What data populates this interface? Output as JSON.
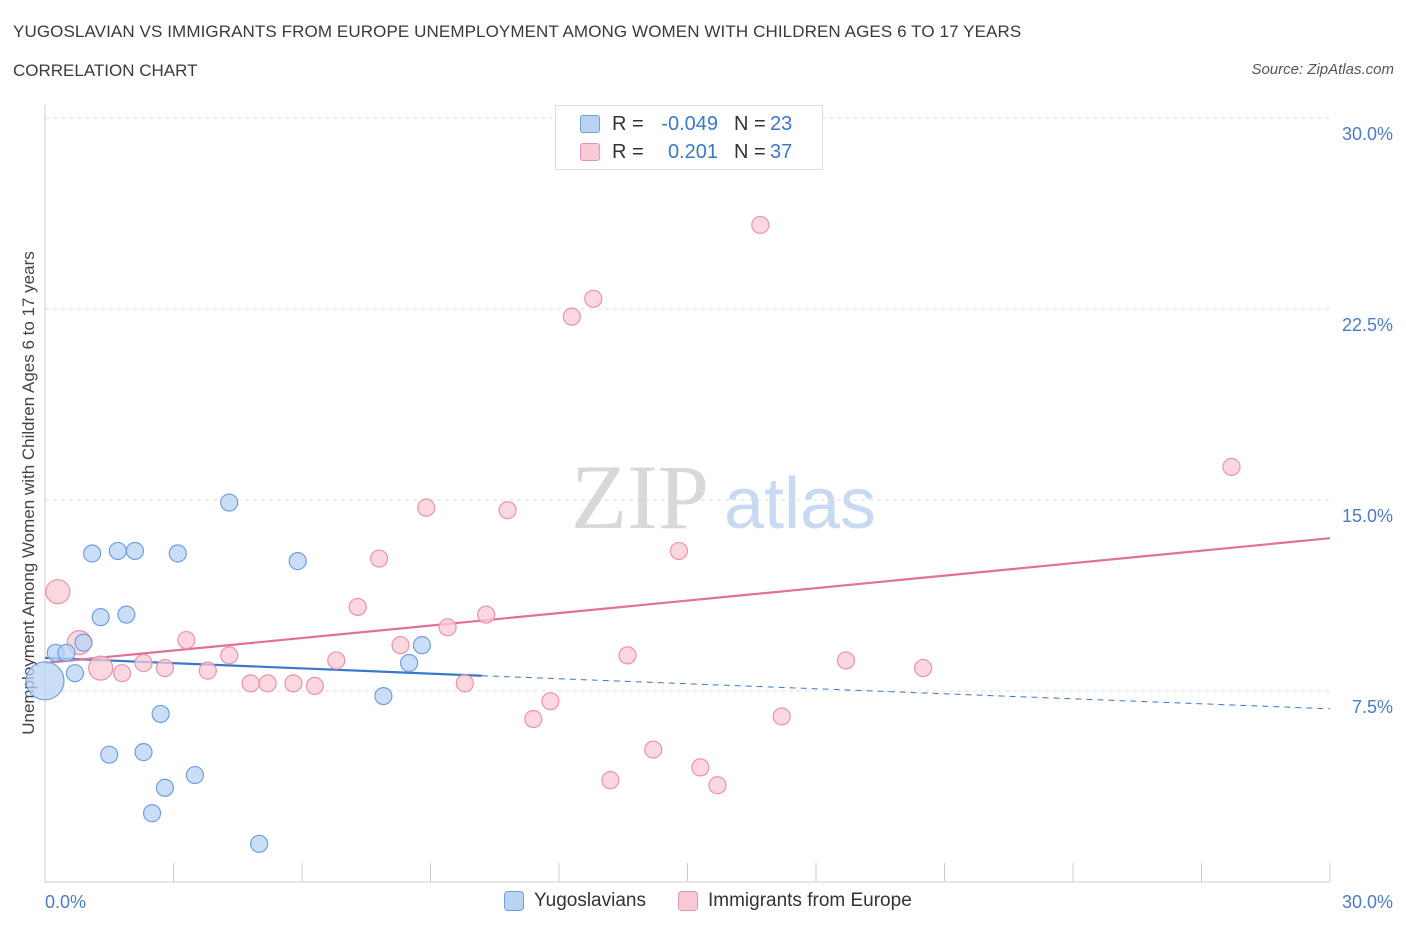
{
  "header": {
    "title": "YUGOSLAVIAN VS IMMIGRANTS FROM EUROPE UNEMPLOYMENT AMONG WOMEN WITH CHILDREN AGES 6 TO 17 YEARS",
    "subtitle": "CORRELATION CHART",
    "source": "Source: ZipAtlas.com"
  },
  "watermark": {
    "zip": "ZIP",
    "atlas": "atlas"
  },
  "legend": {
    "rows": [
      {
        "r_label": "R =",
        "r_value": "-0.049",
        "n_label": "N =",
        "n_value": "23"
      },
      {
        "r_label": "R =",
        "r_value": "0.201",
        "n_label": "N =",
        "n_value": "37"
      }
    ]
  },
  "colors": {
    "blue_fill": "#b9d3f5",
    "blue_stroke": "#6f9fe0",
    "blue_line": "#3a78cc",
    "pink_fill": "#f9c9d6",
    "pink_stroke": "#ea93ad",
    "pink_line": "#e2709a",
    "grid": "#dddddd",
    "tick": "#4a7cc8"
  },
  "chart_data": {
    "type": "scatter",
    "title": "YUGOSLAVIAN VS IMMIGRANTS FROM EUROPE UNEMPLOYMENT AMONG WOMEN WITH CHILDREN AGES 6 TO 17 YEARS",
    "subtitle": "CORRELATION CHART",
    "xlabel": "",
    "ylabel": "Unemployment Among Women with Children Ages 6 to 17 years",
    "xlim": [
      0,
      30
    ],
    "ylim": [
      0,
      30
    ],
    "x_tick_labels": [
      "0.0%",
      "30.0%"
    ],
    "y_ticks": [
      {
        "value": 7.5,
        "label": "7.5%"
      },
      {
        "value": 15,
        "label": "15.0%"
      },
      {
        "value": 22.5,
        "label": "22.5%"
      },
      {
        "value": 30,
        "label": "30.0%"
      }
    ],
    "grid": true,
    "legend_position": "top-center",
    "series": [
      {
        "name": "Yugoslavians",
        "r": -0.049,
        "n": 23,
        "trend": {
          "x0": 0,
          "y0": 8.8,
          "x1": 10.2,
          "y1": 8.1,
          "dash_x1": 30,
          "dash_y1": 6.8
        },
        "points": [
          {
            "x": 0.0,
            "y": 7.9,
            "size": "large"
          },
          {
            "x": 0.25,
            "y": 9.0
          },
          {
            "x": 0.5,
            "y": 9.0
          },
          {
            "x": 0.7,
            "y": 8.2
          },
          {
            "x": 0.9,
            "y": 9.4
          },
          {
            "x": 1.1,
            "y": 12.9
          },
          {
            "x": 1.3,
            "y": 10.4
          },
          {
            "x": 1.5,
            "y": 5.0
          },
          {
            "x": 1.7,
            "y": 13.0
          },
          {
            "x": 1.9,
            "y": 10.5
          },
          {
            "x": 2.1,
            "y": 13.0
          },
          {
            "x": 2.3,
            "y": 5.1
          },
          {
            "x": 2.5,
            "y": 2.7
          },
          {
            "x": 2.7,
            "y": 6.6
          },
          {
            "x": 2.8,
            "y": 3.7
          },
          {
            "x": 3.1,
            "y": 12.9
          },
          {
            "x": 3.5,
            "y": 4.2
          },
          {
            "x": 4.3,
            "y": 14.9
          },
          {
            "x": 5.0,
            "y": 1.5
          },
          {
            "x": 5.9,
            "y": 12.6
          },
          {
            "x": 7.9,
            "y": 7.3
          },
          {
            "x": 8.5,
            "y": 8.6
          },
          {
            "x": 8.8,
            "y": 9.3
          }
        ]
      },
      {
        "name": "Immigrants from Europe",
        "r": 0.201,
        "n": 37,
        "trend": {
          "x0": 0,
          "y0": 8.6,
          "x1": 30,
          "y1": 13.5
        },
        "points": [
          {
            "x": 0.3,
            "y": 11.4,
            "size": "medium"
          },
          {
            "x": 0.8,
            "y": 9.4,
            "size": "medium"
          },
          {
            "x": 1.3,
            "y": 8.4,
            "size": "medium"
          },
          {
            "x": 1.8,
            "y": 8.2
          },
          {
            "x": 2.3,
            "y": 8.6
          },
          {
            "x": 2.8,
            "y": 8.4
          },
          {
            "x": 3.3,
            "y": 9.5
          },
          {
            "x": 3.8,
            "y": 8.3
          },
          {
            "x": 4.3,
            "y": 8.9
          },
          {
            "x": 4.8,
            "y": 7.8
          },
          {
            "x": 5.2,
            "y": 7.8
          },
          {
            "x": 5.8,
            "y": 7.8
          },
          {
            "x": 6.3,
            "y": 7.7
          },
          {
            "x": 6.8,
            "y": 8.7
          },
          {
            "x": 7.3,
            "y": 10.8
          },
          {
            "x": 7.8,
            "y": 12.7
          },
          {
            "x": 8.3,
            "y": 9.3
          },
          {
            "x": 8.9,
            "y": 14.7
          },
          {
            "x": 9.4,
            "y": 10.0
          },
          {
            "x": 9.8,
            "y": 7.8
          },
          {
            "x": 10.3,
            "y": 10.5
          },
          {
            "x": 10.8,
            "y": 14.6
          },
          {
            "x": 11.4,
            "y": 6.4
          },
          {
            "x": 11.8,
            "y": 7.1
          },
          {
            "x": 12.3,
            "y": 22.2
          },
          {
            "x": 12.8,
            "y": 22.9
          },
          {
            "x": 13.2,
            "y": 4.0
          },
          {
            "x": 13.6,
            "y": 8.9
          },
          {
            "x": 14.2,
            "y": 5.2
          },
          {
            "x": 14.8,
            "y": 13.0
          },
          {
            "x": 15.3,
            "y": 4.5
          },
          {
            "x": 15.7,
            "y": 3.8
          },
          {
            "x": 16.7,
            "y": 25.8
          },
          {
            "x": 17.2,
            "y": 6.5
          },
          {
            "x": 18.7,
            "y": 8.7
          },
          {
            "x": 20.5,
            "y": 8.4
          },
          {
            "x": 27.7,
            "y": 16.3
          }
        ]
      }
    ]
  }
}
